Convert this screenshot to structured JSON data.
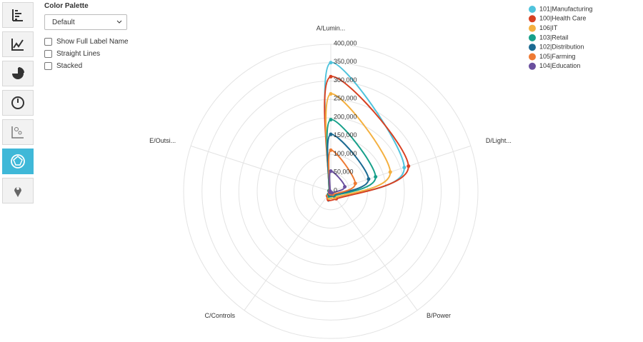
{
  "controls": {
    "palette_label": "Color Palette",
    "palette_value": "Default",
    "options": [
      "Show Full Label Name",
      "Straight Lines",
      "Stacked"
    ]
  },
  "chart_data": {
    "type": "radar",
    "categories": [
      "A/Lumin...",
      "D/Light...",
      "B/Power",
      "C/Controls",
      "E/Outsi..."
    ],
    "series": [
      {
        "name": "101|Manufacturing",
        "color": "#4fc3dc",
        "values": [
          350000,
          210000,
          20000,
          10000,
          5000
        ]
      },
      {
        "name": "100|Health Care",
        "color": "#d84122",
        "values": [
          312000,
          222000,
          25000,
          15000,
          5000
        ]
      },
      {
        "name": "106|IT",
        "color": "#f4b03f",
        "values": [
          265000,
          170000,
          20000,
          12000,
          5000
        ]
      },
      {
        "name": "103|Retail",
        "color": "#17a08a",
        "values": [
          195000,
          128000,
          15000,
          10000,
          5000
        ]
      },
      {
        "name": "102|Distribution",
        "color": "#1b6a92",
        "values": [
          155000,
          108000,
          12000,
          8000,
          4000
        ]
      },
      {
        "name": "105|Farming",
        "color": "#ee7a33",
        "values": [
          112000,
          70000,
          10000,
          6000,
          3000
        ]
      },
      {
        "name": "104|Education",
        "color": "#6a4f9e",
        "values": [
          55000,
          40000,
          5000,
          4000,
          2000
        ]
      }
    ],
    "ylim": [
      0,
      400000
    ],
    "yticks": [
      0,
      {
        "value": 50000,
        "label": "50,000"
      },
      {
        "value": 100000,
        "label": "100,000"
      },
      {
        "value": 150000,
        "label": "150,000"
      },
      {
        "value": 200000,
        "label": "200,000"
      },
      {
        "value": 250000,
        "label": "250,000"
      },
      {
        "value": 300000,
        "label": "300,000"
      },
      {
        "value": 350000,
        "label": "350,000"
      },
      {
        "value": 400000,
        "label": "400,000"
      }
    ],
    "grid": true,
    "legend": "top-right"
  }
}
